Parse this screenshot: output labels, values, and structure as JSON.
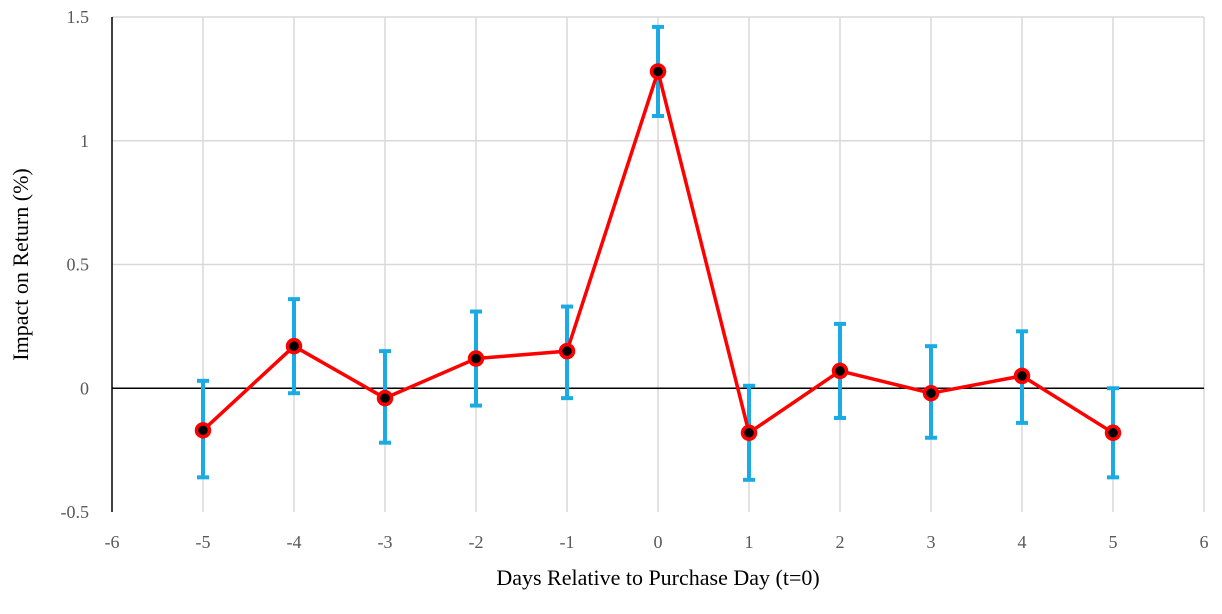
{
  "chart_data": {
    "type": "line",
    "title": "",
    "xlabel": "Days Relative to Purchase Day (t=0)",
    "ylabel": "Impact on Return  (%)",
    "xlim": [
      -6,
      6
    ],
    "ylim": [
      -0.5,
      1.5
    ],
    "xticks": [
      -6,
      -5,
      -4,
      -3,
      -2,
      -1,
      0,
      1,
      2,
      3,
      4,
      5,
      6
    ],
    "yticks": [
      -0.5,
      0,
      0.5,
      1,
      1.5
    ],
    "xtick_labels": [
      "-6",
      "-5",
      "-4",
      "-3",
      "-2",
      "-1",
      "0",
      "1",
      "2",
      "3",
      "4",
      "5",
      "6"
    ],
    "ytick_labels": [
      "-0.5",
      "0",
      "0.5",
      "1",
      "1.5"
    ],
    "grid": "vertical",
    "legend": "none",
    "series": [
      {
        "x": [
          -5,
          -4,
          -3,
          -2,
          -1,
          0,
          1,
          2,
          3,
          4,
          5
        ],
        "y": [
          -0.17,
          0.17,
          -0.04,
          0.12,
          0.15,
          1.28,
          -0.18,
          0.07,
          -0.02,
          0.05,
          -0.18
        ],
        "error_low": [
          -0.36,
          -0.02,
          -0.22,
          -0.07,
          -0.04,
          1.1,
          -0.37,
          -0.12,
          -0.2,
          -0.14,
          -0.36
        ],
        "error_high": [
          0.03,
          0.36,
          0.15,
          0.31,
          0.33,
          1.46,
          0.01,
          0.26,
          0.17,
          0.23,
          0.0
        ],
        "line_color": "#ff0000",
        "marker_fill": "#000000",
        "marker_edge": "#ff0000",
        "error_color": "#1aabe4"
      }
    ],
    "colors": {
      "grid": "#d9d9d9",
      "axis": "#000000",
      "zero_line": "#000000"
    }
  }
}
